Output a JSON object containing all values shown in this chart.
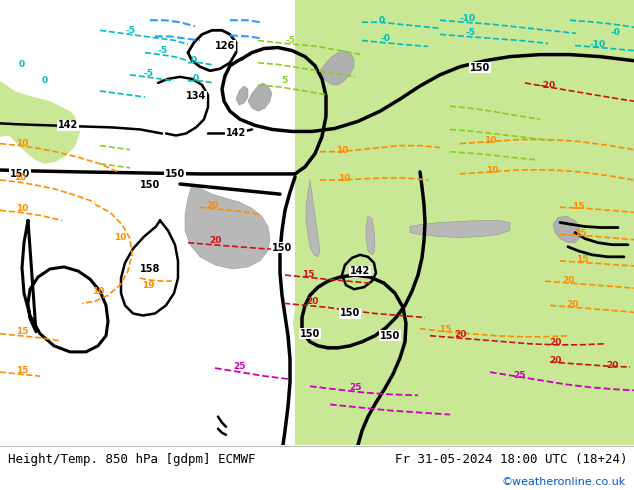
{
  "title_left": "Height/Temp. 850 hPa [gdpm] ECMWF",
  "title_right": "Fr 31-05-2024 18:00 UTC (18+24)",
  "watermark": "©weatheronline.co.uk",
  "watermark_color": "#0055cc",
  "figsize": [
    6.34,
    4.9
  ],
  "dpi": 100,
  "font_size_title": 9,
  "font_size_watermark": 8,
  "warm_green": "#c8e896",
  "grey_land": "#c8c8c8",
  "dark_grey": "#aaaaaa",
  "orange": "#FF8C00",
  "red": "#CC1111",
  "magenta": "#CC00BB",
  "black": "#000000",
  "cyan": "#00BBBB",
  "lgreen": "#88CC22",
  "blue_cyan": "#3399FF"
}
